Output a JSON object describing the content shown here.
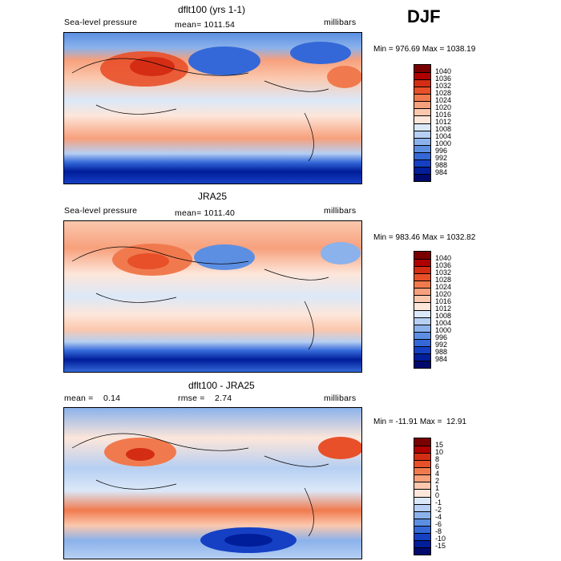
{
  "season_label": "DJF",
  "panels": [
    {
      "id": "model",
      "title": "dflt100 (yrs 1-1)",
      "left_label": "Sea-level pressure",
      "center_label": "mean= 1011.54",
      "units": "millibars",
      "minmax": "Min = 976.69 Max = 1038.19",
      "colorbar": {
        "labels": [
          "1040",
          "1036",
          "1032",
          "1028",
          "1024",
          "1020",
          "1016",
          "1012",
          "1008",
          "1004",
          "1000",
          "996",
          "992",
          "988",
          "984"
        ],
        "colors": [
          "#7a0000",
          "#b00000",
          "#d42d14",
          "#e8502a",
          "#f07a4e",
          "#f7a07c",
          "#fbc8ae",
          "#fde6da",
          "#dbe8f8",
          "#b6cff2",
          "#8bb2eb",
          "#5c8fe2",
          "#3468d8",
          "#1540c4",
          "#001d9a",
          "#000a6e"
        ]
      }
    },
    {
      "id": "obs",
      "title": "JRA25",
      "left_label": "Sea-level pressure",
      "center_label": "mean= 1011.40",
      "units": "millibars",
      "minmax": "Min = 983.46 Max = 1032.82",
      "colorbar": {
        "labels": [
          "1040",
          "1036",
          "1032",
          "1028",
          "1024",
          "1020",
          "1016",
          "1012",
          "1008",
          "1004",
          "1000",
          "996",
          "992",
          "988",
          "984"
        ],
        "colors": [
          "#7a0000",
          "#b00000",
          "#d42d14",
          "#e8502a",
          "#f07a4e",
          "#f7a07c",
          "#fbc8ae",
          "#fde6da",
          "#dbe8f8",
          "#b6cff2",
          "#8bb2eb",
          "#5c8fe2",
          "#3468d8",
          "#1540c4",
          "#001d9a",
          "#000a6e"
        ]
      }
    },
    {
      "id": "diff",
      "title": "dflt100 - JRA25",
      "left_label": "mean =    0.14",
      "center_label": "rmse =    2.74",
      "units": "millibars",
      "minmax": "Min = -11.91 Max =  12.91",
      "colorbar": {
        "labels": [
          "15",
          "10",
          "8",
          "6",
          "4",
          "2",
          "1",
          "0",
          "-1",
          "-2",
          "-4",
          "-6",
          "-8",
          "-10",
          "-15"
        ],
        "colors": [
          "#7a0000",
          "#b00000",
          "#d42d14",
          "#e8502a",
          "#f07a4e",
          "#f7a07c",
          "#fbc8ae",
          "#fde6da",
          "#dbe8f8",
          "#b6cff2",
          "#8bb2eb",
          "#5c8fe2",
          "#3468d8",
          "#1540c4",
          "#001d9a",
          "#000a6e"
        ]
      }
    }
  ],
  "chart_data": {
    "type": "heatmap",
    "season": "DJF",
    "maps": [
      {
        "title": "dflt100 (yrs 1-1)",
        "field": "Sea-level pressure",
        "units": "millibars",
        "mean": 1011.54,
        "min": 976.69,
        "max": 1038.19,
        "contour_levels": [
          1040,
          1036,
          1032,
          1028,
          1024,
          1020,
          1016,
          1012,
          1008,
          1004,
          1000,
          996,
          992,
          988,
          984
        ]
      },
      {
        "title": "JRA25",
        "field": "Sea-level pressure",
        "units": "millibars",
        "mean": 1011.4,
        "min": 983.46,
        "max": 1032.82,
        "contour_levels": [
          1040,
          1036,
          1032,
          1028,
          1024,
          1020,
          1016,
          1012,
          1008,
          1004,
          1000,
          996,
          992,
          988,
          984
        ]
      },
      {
        "title": "dflt100 - JRA25",
        "units": "millibars",
        "mean": 0.14,
        "rmse": 2.74,
        "min": -11.91,
        "max": 12.91,
        "contour_levels": [
          15,
          10,
          8,
          6,
          4,
          2,
          1,
          0,
          -1,
          -2,
          -4,
          -6,
          -8,
          -10,
          -15
        ]
      }
    ]
  }
}
